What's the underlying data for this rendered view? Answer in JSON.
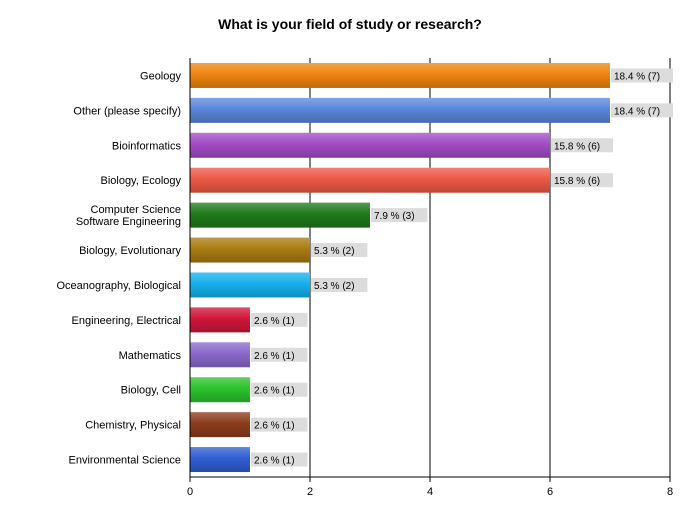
{
  "chart_data": {
    "type": "bar",
    "orientation": "horizontal",
    "title": "What is your field of study or research?",
    "xlabel": "",
    "ylabel": "",
    "xlim": [
      0,
      8
    ],
    "x_ticks": [
      0,
      2,
      4,
      6,
      8
    ],
    "grid": true,
    "categories": [
      [
        "Geology"
      ],
      [
        "Other (please specify)"
      ],
      [
        "Bioinformatics"
      ],
      [
        "Biology, Ecology"
      ],
      [
        "Computer Science",
        "Software Engineering"
      ],
      [
        "Biology, Evolutionary"
      ],
      [
        "Oceanography, Biological"
      ],
      [
        "Engineering, Electrical"
      ],
      [
        "Mathematics"
      ],
      [
        "Biology, Cell"
      ],
      [
        "Chemistry, Physical"
      ],
      [
        "Environmental Science"
      ]
    ],
    "values": [
      7,
      7,
      6,
      6,
      3,
      2,
      2,
      1,
      1,
      1,
      1,
      1
    ],
    "data_labels": [
      "18.4 % (7)",
      "18.4 % (7)",
      "15.8 % (6)",
      "15.8 % (6)",
      "7.9 % (3)",
      "5.3 % (2)",
      "5.3 % (2)",
      "2.6 % (1)",
      "2.6 % (1)",
      "2.6 % (1)",
      "2.6 % (1)",
      "2.6 % (1)"
    ],
    "colors": [
      "#ef8410",
      "#5a86dc",
      "#a24bc6",
      "#ec5845",
      "#1f7a1a",
      "#a97b10",
      "#14b0ec",
      "#d0163a",
      "#8a68cc",
      "#2cc22c",
      "#8c3c1c",
      "#2f5ed4"
    ]
  }
}
